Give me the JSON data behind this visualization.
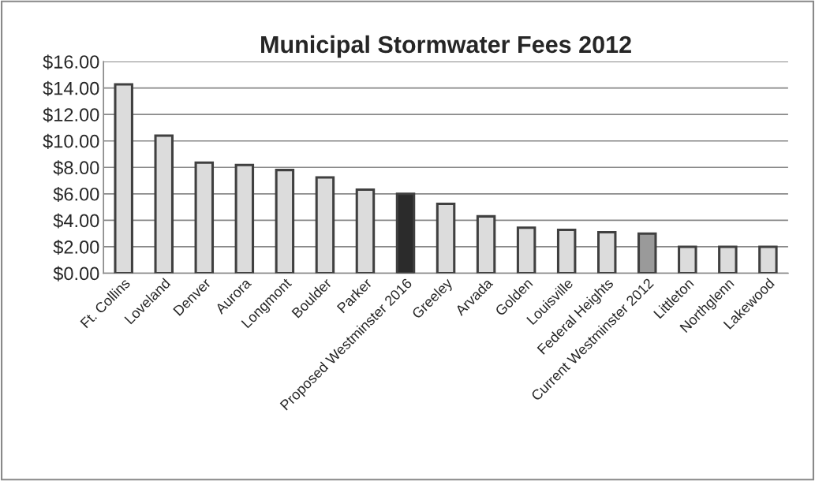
{
  "chart_data": {
    "type": "bar",
    "title": "Municipal Stormwater Fees 2012",
    "categories": [
      "Ft. Collins",
      "Loveland",
      "Denver",
      "Aurora",
      "Longmont",
      "Boulder",
      "Parker",
      "Proposed Westminster 2016",
      "Greeley",
      "Arvada",
      "Golden",
      "Louisville",
      "Federal Heights",
      "Current Westminster 2012",
      "Littleton",
      "Northglenn",
      "Lakewood"
    ],
    "values": [
      14.28,
      10.4,
      8.36,
      8.18,
      7.8,
      7.24,
      6.32,
      6.0,
      5.24,
      4.3,
      3.44,
      3.28,
      3.1,
      3.0,
      2.0,
      2.0,
      2.0
    ],
    "colors": [
      "#dcdcdc",
      "#dcdcdc",
      "#dcdcdc",
      "#dcdcdc",
      "#dcdcdc",
      "#dcdcdc",
      "#dcdcdc",
      "#2b2b2b",
      "#dcdcdc",
      "#dcdcdc",
      "#dcdcdc",
      "#dcdcdc",
      "#dcdcdc",
      "#9a9a9a",
      "#dcdcdc",
      "#dcdcdc",
      "#dcdcdc"
    ],
    "ylim": [
      0,
      16
    ],
    "yticks": [
      {
        "value": 0,
        "label": "$0.00"
      },
      {
        "value": 2,
        "label": "$2.00"
      },
      {
        "value": 4,
        "label": "$4.00"
      },
      {
        "value": 6,
        "label": "$6.00"
      },
      {
        "value": 8,
        "label": "$8.00"
      },
      {
        "value": 10,
        "label": "$10.00"
      },
      {
        "value": 12,
        "label": "$12.00"
      },
      {
        "value": 14,
        "label": "$14.00"
      },
      {
        "value": 16,
        "label": "$16.00"
      }
    ],
    "grid": "y",
    "legend": false
  }
}
